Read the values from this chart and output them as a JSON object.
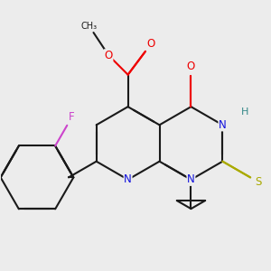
{
  "bg_color": "#ececec",
  "bond_color": "#1a1a1a",
  "bond_width": 1.5,
  "figsize": [
    3.0,
    3.0
  ],
  "dpi": 100,
  "colors": {
    "N": "#1010dd",
    "O": "#ee0000",
    "S": "#aaaa00",
    "F": "#cc44cc",
    "H": "#338888",
    "C": "#1a1a1a"
  }
}
